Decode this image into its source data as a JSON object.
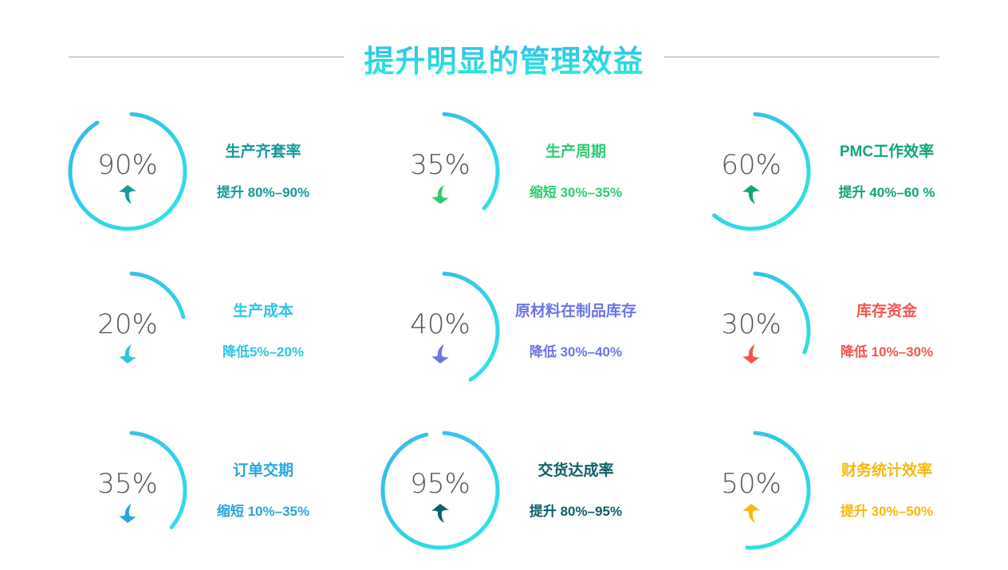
{
  "header": {
    "title": "提升明显的管理效益"
  },
  "gradient": {
    "start": "#3ab4ec",
    "end": "#2ee8e4"
  },
  "metrics": [
    {
      "percent": 90,
      "value_label": "90%",
      "name": "生产齐套率",
      "change": "提升 80%–90%",
      "direction": "up",
      "color": "#16999e",
      "icon": "arrow-up-icon"
    },
    {
      "percent": 35,
      "value_label": "35%",
      "name": "生产周期",
      "change": "缩短 30%–35%",
      "direction": "down",
      "color": "#2ecc71",
      "icon": "arrow-down-icon"
    },
    {
      "percent": 60,
      "value_label": "60%",
      "name": "PMC工作效率",
      "change": "提升 40%–60 %",
      "direction": "up",
      "color": "#0fa57a",
      "icon": "arrow-up-icon"
    },
    {
      "percent": 20,
      "value_label": "20%",
      "name": "生产成本",
      "change": "降低5%–20%",
      "direction": "down",
      "color": "#2cc6e4",
      "icon": "arrow-down-icon"
    },
    {
      "percent": 40,
      "value_label": "40%",
      "name": "原材料在制品库存",
      "change": "降低 30%–40%",
      "direction": "down",
      "color": "#6a74e8",
      "icon": "arrow-down-icon"
    },
    {
      "percent": 30,
      "value_label": "30%",
      "name": "库存资金",
      "change": "降低 10%–30%",
      "direction": "down",
      "color": "#f4554e",
      "icon": "arrow-down-icon"
    },
    {
      "percent": 35,
      "value_label": "35%",
      "name": "订单交期",
      "change": "缩短 10%–35%",
      "direction": "down",
      "color": "#27a6e0",
      "icon": "arrow-down-icon"
    },
    {
      "percent": 95,
      "value_label": "95%",
      "name": "交货达成率",
      "change": "提升 80%–95%",
      "direction": "up",
      "color": "#0b5f68",
      "icon": "arrow-up-icon"
    },
    {
      "percent": 50,
      "value_label": "50%",
      "name": "财务统计效率",
      "change": "提升 30%–50%",
      "direction": "up",
      "color": "#f6b90a",
      "icon": "arrow-up-icon"
    }
  ]
}
